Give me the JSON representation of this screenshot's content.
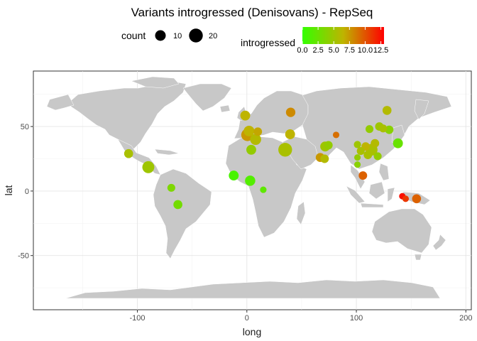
{
  "chart_data": {
    "type": "scatter",
    "title": "Variants introgressed (Denisovans) - RepSeq",
    "xlabel": "long",
    "ylabel": "lat",
    "xlim": [
      -195,
      205
    ],
    "ylim": [
      -92,
      93
    ],
    "x_ticks": [
      -100,
      0,
      100,
      200
    ],
    "x_tick_labels": [
      "-100",
      "0",
      "100",
      "200"
    ],
    "y_ticks": [
      -50,
      0,
      50
    ],
    "y_tick_labels": [
      "-50",
      "0",
      "50"
    ],
    "grid": true,
    "legend_size": {
      "title": "count",
      "entries": [
        {
          "label": "10",
          "value": 10
        },
        {
          "label": "20",
          "value": 20
        }
      ]
    },
    "legend_color": {
      "title": "introgressed",
      "range": [
        0,
        13
      ],
      "colors": [
        "#33ff00",
        "#ff0000"
      ],
      "tick_values": [
        0,
        2.5,
        5,
        7.5,
        10,
        12.5
      ],
      "tick_labels": [
        "0.0",
        "2.5",
        "5.0",
        "7.5",
        "10.0",
        "12.5"
      ]
    },
    "points": [
      {
        "long": -108,
        "lat": 29,
        "count": 6,
        "introgressed": 5.5
      },
      {
        "long": -90,
        "lat": 18.5,
        "count": 14,
        "introgressed": 5.0
      },
      {
        "long": -69,
        "lat": 2.5,
        "count": 4,
        "introgressed": 3.5
      },
      {
        "long": -63,
        "lat": -10.5,
        "count": 6,
        "introgressed": 3.0
      },
      {
        "long": -12,
        "lat": 12,
        "count": 8,
        "introgressed": 1.0
      },
      {
        "long": 3,
        "lat": 8,
        "count": 9,
        "introgressed": 1.5
      },
      {
        "long": 15,
        "lat": 1,
        "count": 2,
        "introgressed": 2.0
      },
      {
        "long": -1.5,
        "lat": 58.5,
        "count": 8,
        "introgressed": 6.5
      },
      {
        "long": 0.5,
        "lat": 43.5,
        "count": 15,
        "introgressed": 7.5
      },
      {
        "long": 2,
        "lat": 46.5,
        "count": 10,
        "introgressed": 6.5
      },
      {
        "long": 4,
        "lat": 32,
        "count": 8,
        "introgressed": 4.5
      },
      {
        "long": 8,
        "lat": 40,
        "count": 11,
        "introgressed": 6.0
      },
      {
        "long": 10,
        "lat": 46,
        "count": 5,
        "introgressed": 7.0
      },
      {
        "long": 35,
        "lat": 32,
        "count": 20,
        "introgressed": 5.5
      },
      {
        "long": 40,
        "lat": 61,
        "count": 7,
        "introgressed": 8.0
      },
      {
        "long": 39.5,
        "lat": 44,
        "count": 8,
        "introgressed": 6.5
      },
      {
        "long": 67,
        "lat": 26,
        "count": 6,
        "introgressed": 7.5
      },
      {
        "long": 71,
        "lat": 25,
        "count": 5,
        "introgressed": 6.0
      },
      {
        "long": 71.5,
        "lat": 34.5,
        "count": 8,
        "introgressed": 5.0
      },
      {
        "long": 74.5,
        "lat": 35.5,
        "count": 5,
        "introgressed": 4.5
      },
      {
        "long": 81.5,
        "lat": 43.5,
        "count": 2,
        "introgressed": 9.0
      },
      {
        "long": 101,
        "lat": 36,
        "count": 3,
        "introgressed": 5.0
      },
      {
        "long": 101,
        "lat": 26,
        "count": 2,
        "introgressed": 4.5
      },
      {
        "long": 101,
        "lat": 20.5,
        "count": 2,
        "introgressed": 4.0
      },
      {
        "long": 104,
        "lat": 31,
        "count": 4,
        "introgressed": 5.5
      },
      {
        "long": 106,
        "lat": 12,
        "count": 5,
        "introgressed": 9.5
      },
      {
        "long": 108.5,
        "lat": 34.5,
        "count": 5,
        "introgressed": 6.5
      },
      {
        "long": 110.5,
        "lat": 28,
        "count": 5,
        "introgressed": 5.5
      },
      {
        "long": 112,
        "lat": 48,
        "count": 4,
        "introgressed": 4.5
      },
      {
        "long": 114,
        "lat": 32,
        "count": 13,
        "introgressed": 5.5
      },
      {
        "long": 117,
        "lat": 37,
        "count": 5,
        "introgressed": 6.0
      },
      {
        "long": 119.5,
        "lat": 27,
        "count": 4,
        "introgressed": 4.5
      },
      {
        "long": 121,
        "lat": 50,
        "count": 5,
        "introgressed": 5.0
      },
      {
        "long": 124.5,
        "lat": 48.5,
        "count": 4,
        "introgressed": 5.5
      },
      {
        "long": 128,
        "lat": 62.5,
        "count": 6,
        "introgressed": 6.0
      },
      {
        "long": 130,
        "lat": 47.5,
        "count": 5,
        "introgressed": 4.0
      },
      {
        "long": 138,
        "lat": 37,
        "count": 8,
        "introgressed": 2.5
      },
      {
        "long": 142,
        "lat": -4,
        "count": 2,
        "introgressed": 12.5
      },
      {
        "long": 145,
        "lat": -6,
        "count": 2,
        "introgressed": 11.0
      },
      {
        "long": 155,
        "lat": -6,
        "count": 6,
        "introgressed": 9.5
      }
    ]
  }
}
